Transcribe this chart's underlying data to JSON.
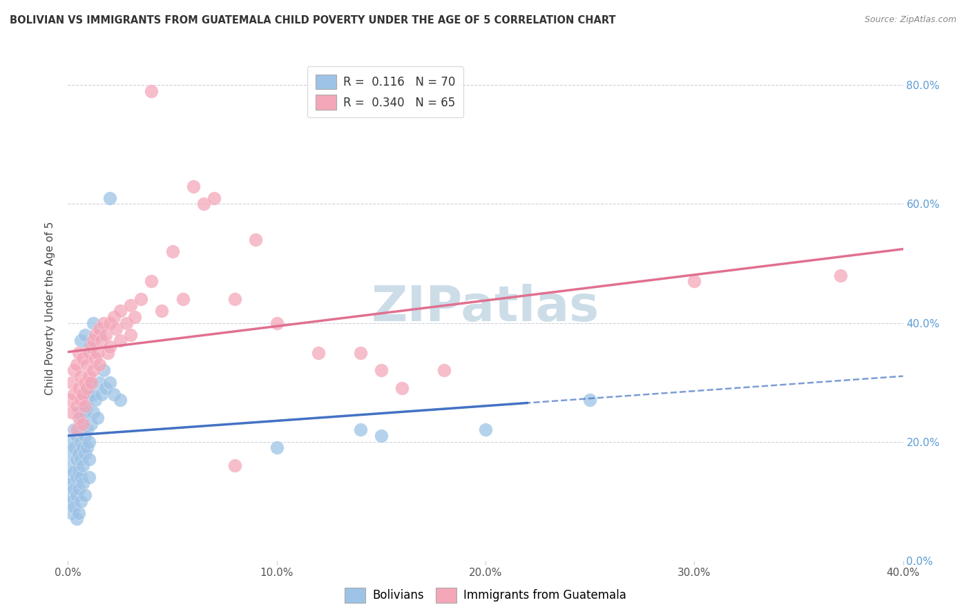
{
  "title": "BOLIVIAN VS IMMIGRANTS FROM GUATEMALA CHILD POVERTY UNDER THE AGE OF 5 CORRELATION CHART",
  "source": "Source: ZipAtlas.com",
  "ylabel": "Child Poverty Under the Age of 5",
  "xlim": [
    0.0,
    0.4
  ],
  "ylim": [
    0.0,
    0.85
  ],
  "xtick_vals": [
    0.0,
    0.1,
    0.2,
    0.3,
    0.4
  ],
  "ytick_vals": [
    0.0,
    0.2,
    0.4,
    0.6,
    0.8
  ],
  "blue_scatter": [
    [
      0.001,
      0.14
    ],
    [
      0.001,
      0.11
    ],
    [
      0.001,
      0.16
    ],
    [
      0.002,
      0.13
    ],
    [
      0.002,
      0.1
    ],
    [
      0.002,
      0.18
    ],
    [
      0.002,
      0.08
    ],
    [
      0.002,
      0.2
    ],
    [
      0.003,
      0.15
    ],
    [
      0.003,
      0.12
    ],
    [
      0.003,
      0.19
    ],
    [
      0.003,
      0.22
    ],
    [
      0.003,
      0.09
    ],
    [
      0.004,
      0.17
    ],
    [
      0.004,
      0.14
    ],
    [
      0.004,
      0.21
    ],
    [
      0.004,
      0.11
    ],
    [
      0.004,
      0.07
    ],
    [
      0.005,
      0.18
    ],
    [
      0.005,
      0.15
    ],
    [
      0.005,
      0.22
    ],
    [
      0.005,
      0.25
    ],
    [
      0.005,
      0.12
    ],
    [
      0.005,
      0.08
    ],
    [
      0.006,
      0.2
    ],
    [
      0.006,
      0.17
    ],
    [
      0.006,
      0.23
    ],
    [
      0.006,
      0.14
    ],
    [
      0.006,
      0.1
    ],
    [
      0.007,
      0.19
    ],
    [
      0.007,
      0.16
    ],
    [
      0.007,
      0.24
    ],
    [
      0.007,
      0.28
    ],
    [
      0.007,
      0.13
    ],
    [
      0.008,
      0.21
    ],
    [
      0.008,
      0.18
    ],
    [
      0.008,
      0.25
    ],
    [
      0.008,
      0.11
    ],
    [
      0.009,
      0.22
    ],
    [
      0.009,
      0.19
    ],
    [
      0.009,
      0.26
    ],
    [
      0.01,
      0.2
    ],
    [
      0.01,
      0.17
    ],
    [
      0.01,
      0.28
    ],
    [
      0.01,
      0.14
    ],
    [
      0.011,
      0.23
    ],
    [
      0.011,
      0.3
    ],
    [
      0.012,
      0.25
    ],
    [
      0.012,
      0.28
    ],
    [
      0.013,
      0.27
    ],
    [
      0.014,
      0.24
    ],
    [
      0.015,
      0.3
    ],
    [
      0.016,
      0.28
    ],
    [
      0.017,
      0.32
    ],
    [
      0.018,
      0.29
    ],
    [
      0.02,
      0.3
    ],
    [
      0.022,
      0.28
    ],
    [
      0.025,
      0.27
    ],
    [
      0.006,
      0.37
    ],
    [
      0.008,
      0.38
    ],
    [
      0.01,
      0.36
    ],
    [
      0.012,
      0.4
    ],
    [
      0.015,
      0.38
    ],
    [
      0.02,
      0.61
    ],
    [
      0.1,
      0.19
    ],
    [
      0.14,
      0.22
    ],
    [
      0.15,
      0.21
    ],
    [
      0.2,
      0.22
    ],
    [
      0.25,
      0.27
    ]
  ],
  "pink_scatter": [
    [
      0.001,
      0.27
    ],
    [
      0.002,
      0.3
    ],
    [
      0.002,
      0.25
    ],
    [
      0.003,
      0.32
    ],
    [
      0.003,
      0.28
    ],
    [
      0.004,
      0.26
    ],
    [
      0.004,
      0.33
    ],
    [
      0.004,
      0.22
    ],
    [
      0.005,
      0.29
    ],
    [
      0.005,
      0.35
    ],
    [
      0.005,
      0.24
    ],
    [
      0.006,
      0.31
    ],
    [
      0.006,
      0.27
    ],
    [
      0.007,
      0.34
    ],
    [
      0.007,
      0.28
    ],
    [
      0.007,
      0.23
    ],
    [
      0.008,
      0.3
    ],
    [
      0.008,
      0.26
    ],
    [
      0.009,
      0.33
    ],
    [
      0.009,
      0.29
    ],
    [
      0.01,
      0.35
    ],
    [
      0.01,
      0.31
    ],
    [
      0.011,
      0.36
    ],
    [
      0.011,
      0.3
    ],
    [
      0.012,
      0.37
    ],
    [
      0.012,
      0.32
    ],
    [
      0.013,
      0.38
    ],
    [
      0.013,
      0.34
    ],
    [
      0.014,
      0.35
    ],
    [
      0.015,
      0.39
    ],
    [
      0.015,
      0.33
    ],
    [
      0.016,
      0.37
    ],
    [
      0.017,
      0.4
    ],
    [
      0.018,
      0.38
    ],
    [
      0.019,
      0.35
    ],
    [
      0.02,
      0.4
    ],
    [
      0.02,
      0.36
    ],
    [
      0.022,
      0.41
    ],
    [
      0.023,
      0.39
    ],
    [
      0.025,
      0.42
    ],
    [
      0.025,
      0.37
    ],
    [
      0.028,
      0.4
    ],
    [
      0.03,
      0.43
    ],
    [
      0.03,
      0.38
    ],
    [
      0.032,
      0.41
    ],
    [
      0.035,
      0.44
    ],
    [
      0.04,
      0.79
    ],
    [
      0.04,
      0.47
    ],
    [
      0.045,
      0.42
    ],
    [
      0.05,
      0.52
    ],
    [
      0.055,
      0.44
    ],
    [
      0.06,
      0.63
    ],
    [
      0.065,
      0.6
    ],
    [
      0.07,
      0.61
    ],
    [
      0.08,
      0.44
    ],
    [
      0.08,
      0.16
    ],
    [
      0.09,
      0.54
    ],
    [
      0.1,
      0.4
    ],
    [
      0.12,
      0.35
    ],
    [
      0.14,
      0.35
    ],
    [
      0.15,
      0.32
    ],
    [
      0.16,
      0.29
    ],
    [
      0.18,
      0.32
    ],
    [
      0.3,
      0.47
    ],
    [
      0.37,
      0.48
    ]
  ],
  "blue_line_color": "#4472c4",
  "pink_line_color": "#e07090",
  "blue_scatter_color": "#9dc3e6",
  "pink_scatter_color": "#f4a7b9",
  "watermark": "ZIPatlas",
  "watermark_color": "#ccdde8",
  "background_color": "#ffffff",
  "grid_color": "#d0d0dc"
}
